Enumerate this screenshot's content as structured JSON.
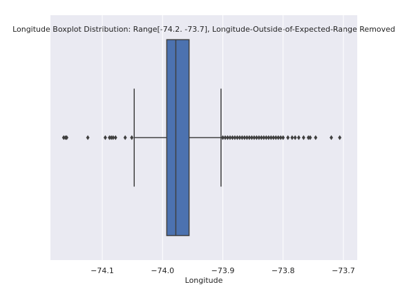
{
  "chart_data": {
    "type": "box",
    "title": "Longitude Boxplot Distribution: Range[-74.2. -73.7], Longitude-Outside-of-Expected-Range Removed",
    "x_label": "Longitude",
    "xlim": [
      -74.186,
      -73.677
    ],
    "xticks": [
      {
        "value": -74.1,
        "label": "−74.1"
      },
      {
        "value": -74.0,
        "label": "−74.0"
      },
      {
        "value": -73.9,
        "label": "−73.9"
      },
      {
        "value": -73.8,
        "label": "−73.8"
      },
      {
        "value": -73.7,
        "label": "−73.7"
      }
    ],
    "grid": true,
    "color": "#4c72b0",
    "boxes": [
      {
        "whislo": -74.047,
        "q1": -73.993,
        "med": -73.978,
        "q3": -73.956,
        "whishi": -73.903,
        "fliers": [
          -74.164,
          -74.161,
          -74.159,
          -74.124,
          -74.095,
          -74.088,
          -74.085,
          -74.082,
          -74.078,
          -74.062,
          -74.051,
          -73.9,
          -73.896,
          -73.892,
          -73.888,
          -73.884,
          -73.88,
          -73.876,
          -73.872,
          -73.868,
          -73.864,
          -73.86,
          -73.856,
          -73.852,
          -73.848,
          -73.844,
          -73.84,
          -73.836,
          -73.832,
          -73.828,
          -73.824,
          -73.82,
          -73.816,
          -73.812,
          -73.808,
          -73.804,
          -73.8,
          -73.792,
          -73.785,
          -73.78,
          -73.774,
          -73.766,
          -73.758,
          -73.755,
          -73.746,
          -73.72,
          -73.706
        ]
      }
    ]
  }
}
